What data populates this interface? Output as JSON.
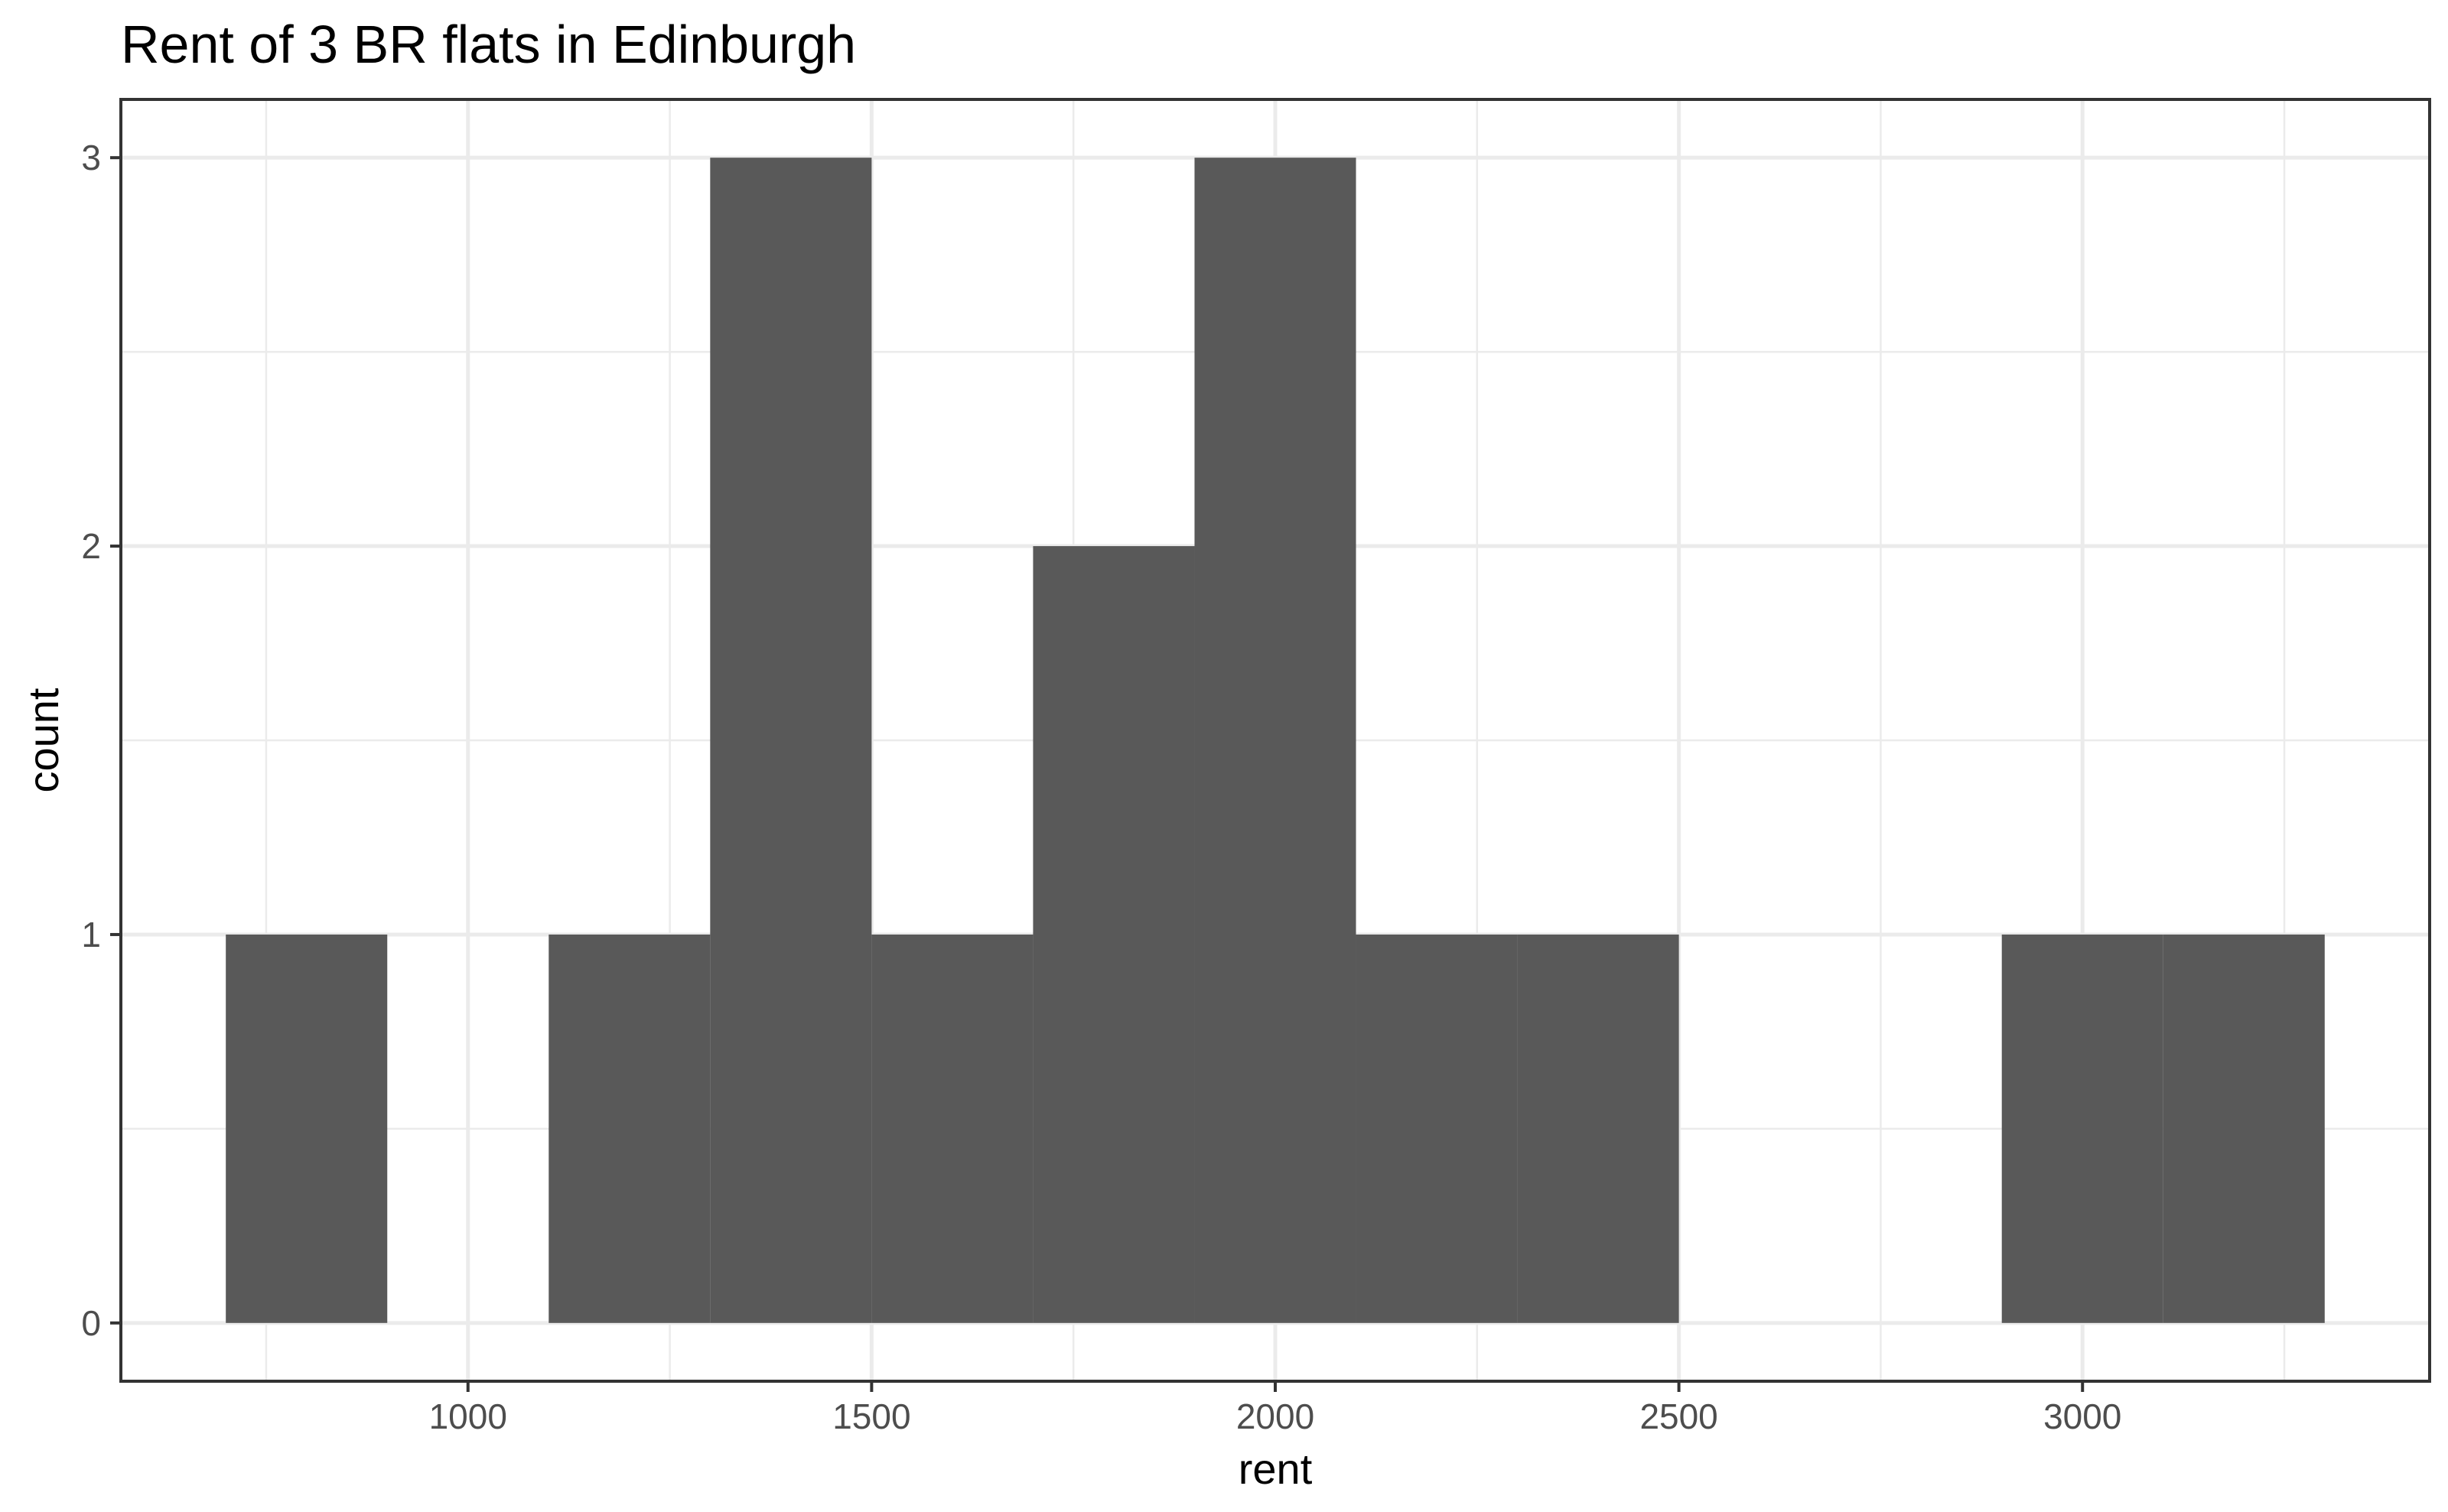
{
  "chart_data": {
    "type": "bar",
    "title": "Rent of 3 BR flats in Edinburgh",
    "xlabel": "rent",
    "ylabel": "count",
    "bin_width": 200,
    "bins": [
      {
        "start": 700,
        "end": 900,
        "count": 1
      },
      {
        "start": 900,
        "end": 1100,
        "count": 0
      },
      {
        "start": 1100,
        "end": 1300,
        "count": 1
      },
      {
        "start": 1300,
        "end": 1500,
        "count": 3
      },
      {
        "start": 1500,
        "end": 1700,
        "count": 1
      },
      {
        "start": 1700,
        "end": 1900,
        "count": 2
      },
      {
        "start": 1900,
        "end": 2100,
        "count": 3
      },
      {
        "start": 2100,
        "end": 2300,
        "count": 1
      },
      {
        "start": 2300,
        "end": 2500,
        "count": 1
      },
      {
        "start": 2500,
        "end": 2700,
        "count": 0
      },
      {
        "start": 2700,
        "end": 2900,
        "count": 0
      },
      {
        "start": 2900,
        "end": 3100,
        "count": 1
      },
      {
        "start": 3100,
        "end": 3300,
        "count": 1
      }
    ],
    "xlim": [
      570,
      3430
    ],
    "ylim": [
      -0.15,
      3.15
    ],
    "x_ticks": [
      "1000",
      "1500",
      "2000",
      "2500",
      "3000"
    ],
    "y_ticks": [
      "0",
      "1",
      "2",
      "3"
    ],
    "bar_color": "#595959",
    "grid": true,
    "legend": "none"
  }
}
